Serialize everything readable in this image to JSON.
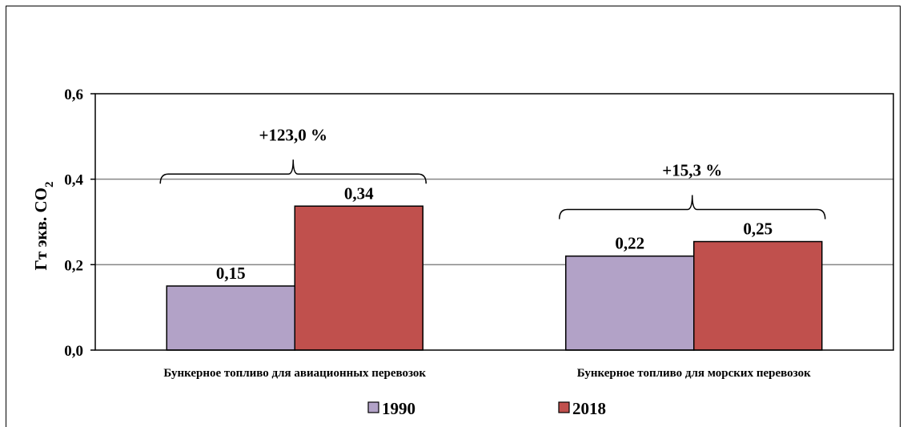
{
  "chart_data": {
    "type": "bar",
    "ylabel": "Гт экв. CO2",
    "ylim": [
      0,
      0.6
    ],
    "yticks": [
      0,
      0.2,
      0.4,
      0.6
    ],
    "ytick_labels": [
      "0,0",
      "0,2",
      "0,4",
      "0,6"
    ],
    "grid": true,
    "legend_position": "bottom",
    "categories": [
      "Бункерное топливо для авиационных перевозок",
      "Бункерное топливо для морских перевозок"
    ],
    "series": [
      {
        "name": "1990",
        "values": [
          0.15,
          0.22
        ],
        "labels": [
          "0,15",
          "0,22"
        ],
        "color": "#b2a2c7"
      },
      {
        "name": "2018",
        "values": [
          0.337,
          0.254
        ],
        "labels": [
          "0,34",
          "0,25"
        ],
        "color": "#c0504d"
      }
    ],
    "annotations": [
      "+123,0 %",
      "+15,3 %"
    ]
  }
}
